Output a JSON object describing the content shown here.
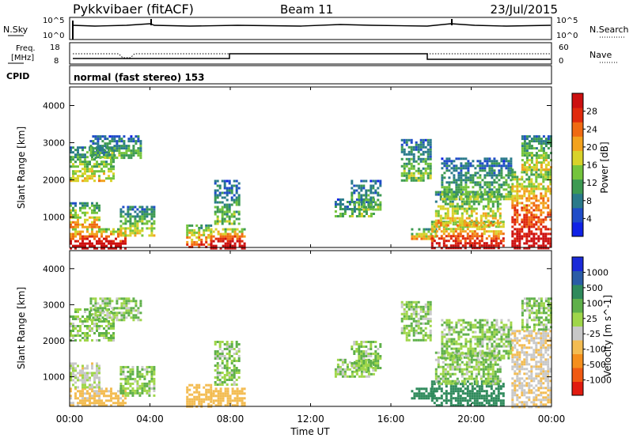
{
  "header": {
    "station": "Pykkvibaer (fitACF)",
    "beam": "Beam 11",
    "date": "23/Jul/2015"
  },
  "nsky": {
    "label": "N.Sky",
    "right_label": "N.Search",
    "tick_top": "10^5",
    "tick_bottom": "10^0",
    "tick_top_r": "10^5",
    "tick_bottom_r": "10^0"
  },
  "freq": {
    "label_line1": "Freq.",
    "label_line2": "[MHz]",
    "right_label": "Nave",
    "tick_top": "18",
    "tick_bottom": "8",
    "tick_top_r": "60",
    "tick_bottom_r": "0"
  },
  "cpid": {
    "label": "CPID",
    "text": "normal (fast stereo) 153"
  },
  "time_axis": {
    "xlabel": "Time UT",
    "ticks": [
      "00:00",
      "04:00",
      "08:00",
      "12:00",
      "16:00",
      "20:00",
      "00:00"
    ]
  },
  "chart_data": [
    {
      "type": "heatmap",
      "panel": "power",
      "ylabel": "Slant Range [km]",
      "y_ticks": [
        "1000",
        "2000",
        "3000",
        "4000"
      ],
      "ylim": [
        180,
        4500
      ],
      "xlim_hours": [
        0,
        24
      ],
      "colorbar": {
        "label": "Power [dB]",
        "tick_labels": [
          "4",
          "8",
          "12",
          "16",
          "20",
          "24",
          "28"
        ],
        "colors": [
          "#1022e6",
          "#1f4cc8",
          "#2a7a8a",
          "#3d9a52",
          "#74c43c",
          "#d8d22a",
          "#f3a21d",
          "#f06a12",
          "#e02a0c",
          "#cc1010"
        ]
      },
      "regions": [
        {
          "t": [
            0.0,
            2.8
          ],
          "r": [
            180,
            700
          ],
          "level": 0.8
        },
        {
          "t": [
            0.0,
            1.5
          ],
          "r": [
            700,
            1400
          ],
          "level": 0.5
        },
        {
          "t": [
            2.5,
            4.2
          ],
          "r": [
            500,
            1300
          ],
          "level": 0.4
        },
        {
          "t": [
            0.0,
            2.2
          ],
          "r": [
            2000,
            2900
          ],
          "level": 0.4
        },
        {
          "t": [
            1.0,
            3.6
          ],
          "r": [
            2600,
            3200
          ],
          "level": 0.3
        },
        {
          "t": [
            5.8,
            7.0
          ],
          "r": [
            180,
            800
          ],
          "level": 0.6
        },
        {
          "t": [
            7.0,
            8.7
          ],
          "r": [
            180,
            700
          ],
          "level": 0.8
        },
        {
          "t": [
            7.2,
            8.5
          ],
          "r": [
            800,
            2000
          ],
          "level": 0.3
        },
        {
          "t": [
            13.2,
            15.2
          ],
          "r": [
            1000,
            1500
          ],
          "level": 0.3
        },
        {
          "t": [
            14.0,
            15.5
          ],
          "r": [
            1200,
            2000
          ],
          "level": 0.3
        },
        {
          "t": [
            16.5,
            18.0
          ],
          "r": [
            2000,
            3100
          ],
          "level": 0.3
        },
        {
          "t": [
            17.0,
            18.2
          ],
          "r": [
            400,
            700
          ],
          "level": 0.5
        },
        {
          "t": [
            18.0,
            21.6
          ],
          "r": [
            180,
            900
          ],
          "level": 0.7
        },
        {
          "t": [
            18.2,
            21.4
          ],
          "r": [
            800,
            1700
          ],
          "level": 0.45
        },
        {
          "t": [
            18.5,
            22.0
          ],
          "r": [
            1500,
            2600
          ],
          "level": 0.3
        },
        {
          "t": [
            22.0,
            24.0
          ],
          "r": [
            180,
            2300
          ],
          "level": 0.7
        },
        {
          "t": [
            22.5,
            24.0
          ],
          "r": [
            2300,
            3200
          ],
          "level": 0.4
        }
      ]
    },
    {
      "type": "heatmap",
      "panel": "velocity",
      "ylabel": "Slant Range [km]",
      "y_ticks": [
        "1000",
        "2000",
        "3000",
        "4000"
      ],
      "ylim": [
        180,
        4500
      ],
      "xlim_hours": [
        0,
        24
      ],
      "colorbar": {
        "label": "Velocity [m s^-1]",
        "tick_labels": [
          "-1000",
          "-500",
          "-100",
          "-25",
          "25",
          "100",
          "500",
          "1000"
        ],
        "colors": [
          "#e11b10",
          "#f05a12",
          "#f58f1c",
          "#f3bc52",
          "#c8c8c8",
          "#9fd64a",
          "#5fb04a",
          "#2f8a5c",
          "#2a5ca6",
          "#1a2ad8"
        ]
      },
      "regions": [
        {
          "t": [
            0.0,
            2.8
          ],
          "r": [
            180,
            700
          ],
          "v": -150
        },
        {
          "t": [
            0.0,
            1.5
          ],
          "r": [
            700,
            1400
          ],
          "v": -60
        },
        {
          "t": [
            2.5,
            4.2
          ],
          "r": [
            500,
            1300
          ],
          "v": 0
        },
        {
          "t": [
            0.0,
            2.2
          ],
          "r": [
            2000,
            2900
          ],
          "v": 0
        },
        {
          "t": [
            1.0,
            3.6
          ],
          "r": [
            2600,
            3200
          ],
          "v": 0
        },
        {
          "t": [
            5.8,
            7.0
          ],
          "r": [
            180,
            800
          ],
          "v": -200
        },
        {
          "t": [
            7.0,
            8.7
          ],
          "r": [
            180,
            700
          ],
          "v": -250
        },
        {
          "t": [
            7.2,
            8.5
          ],
          "r": [
            800,
            2000
          ],
          "v": 0
        },
        {
          "t": [
            13.2,
            15.2
          ],
          "r": [
            1000,
            1500
          ],
          "v": 0
        },
        {
          "t": [
            14.0,
            15.5
          ],
          "r": [
            1200,
            2000
          ],
          "v": 0
        },
        {
          "t": [
            16.5,
            18.0
          ],
          "r": [
            2000,
            3100
          ],
          "v": 0
        },
        {
          "t": [
            17.0,
            18.2
          ],
          "r": [
            400,
            700
          ],
          "v": 300
        },
        {
          "t": [
            18.0,
            21.6
          ],
          "r": [
            180,
            900
          ],
          "v": 250
        },
        {
          "t": [
            18.2,
            21.4
          ],
          "r": [
            800,
            1700
          ],
          "v": 0
        },
        {
          "t": [
            18.5,
            22.0
          ],
          "r": [
            1500,
            2600
          ],
          "v": 0
        },
        {
          "t": [
            22.0,
            24.0
          ],
          "r": [
            180,
            2300
          ],
          "v": -100
        },
        {
          "t": [
            22.5,
            24.0
          ],
          "r": [
            2300,
            3200
          ],
          "v": 0
        }
      ]
    }
  ]
}
